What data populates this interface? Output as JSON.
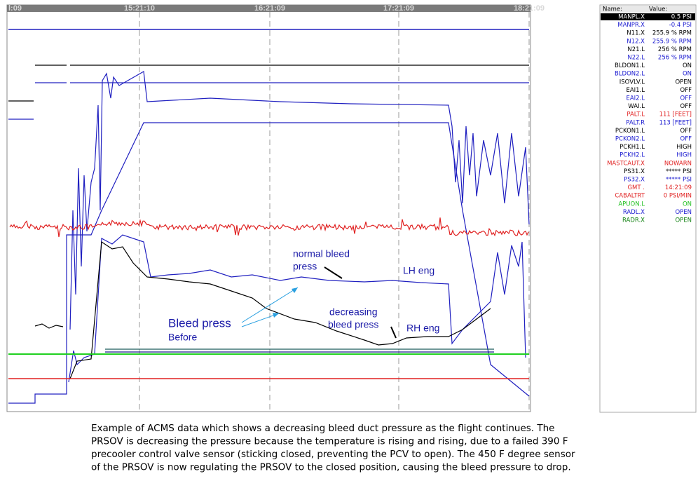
{
  "plot": {
    "time_labels": [
      "l:09",
      "15:21:10",
      "16:21:09",
      "17:21:09",
      "18:21:09"
    ],
    "annotations": {
      "normal": [
        "normal bleed",
        "press"
      ],
      "lh": "LH eng",
      "decreasing": [
        "decreasing",
        "bleed press"
      ],
      "rh": "RH eng",
      "before": [
        "Bleed press",
        "Before"
      ]
    }
  },
  "table": {
    "header": [
      "Name:",
      "Value:"
    ],
    "rows": [
      {
        "name": "MANPL.X",
        "value": "0.5 PSI",
        "color": "#ffffff"
      },
      {
        "name": "MANPR.X",
        "value": "-0.4 PSI",
        "color": "#1a1ad0"
      },
      {
        "name": "N11.X",
        "value": "255.9 % RPM",
        "color": "#000000"
      },
      {
        "name": "N12.X",
        "value": "255.9 % RPM",
        "color": "#1a1ad0"
      },
      {
        "name": "N21.L",
        "value": "256 % RPM",
        "color": "#000000"
      },
      {
        "name": "N22.L",
        "value": "256 % RPM",
        "color": "#1a1ad0"
      },
      {
        "name": "BLDON1.L",
        "value": "ON",
        "color": "#000000"
      },
      {
        "name": "BLDON2.L",
        "value": "ON",
        "color": "#1a1ad0"
      },
      {
        "name": "ISOVLV.L",
        "value": "OPEN",
        "color": "#000000"
      },
      {
        "name": "EAI1.L",
        "value": "OFF",
        "color": "#000000"
      },
      {
        "name": "EAI2.L",
        "value": "OFF",
        "color": "#1a1ad0"
      },
      {
        "name": "WAI.L",
        "value": "OFF",
        "color": "#000000"
      },
      {
        "name": "PALT.L",
        "value": "111 [FEET]",
        "color": "#e02020"
      },
      {
        "name": "PALT.R",
        "value": "113 [FEET]",
        "color": "#1a1ad0"
      },
      {
        "name": "PCKON1.L",
        "value": "OFF",
        "color": "#000000"
      },
      {
        "name": "PCKON2.L",
        "value": "OFF",
        "color": "#1a1ad0"
      },
      {
        "name": "PCKH1.L",
        "value": "HIGH",
        "color": "#000000"
      },
      {
        "name": "PCKH2.L",
        "value": "HIGH",
        "color": "#1a1ad0"
      },
      {
        "name": "MASTCAUT.X",
        "value": "NOWARN",
        "color": "#e02020"
      },
      {
        "name": "PS31.X",
        "value": "***** PSI",
        "color": "#000000"
      },
      {
        "name": "PS32.X",
        "value": "***** PSI",
        "color": "#1a1ad0"
      },
      {
        "name": "GMT .",
        "value": "14:21:09",
        "color": "#e02020"
      },
      {
        "name": "CABALTRT",
        "value": "0 PSI/MIN",
        "color": "#e02020"
      },
      {
        "name": "APUON.L",
        "value": "ON",
        "color": "#20c020"
      },
      {
        "name": "RADL.X",
        "value": "OPEN",
        "color": "#1a1ad0"
      },
      {
        "name": "RADR.X",
        "value": "OPEN",
        "color": "#108010"
      }
    ]
  },
  "caption": [
    "Example of ACMS data which shows a decreasing bleed duct pressure as the flight continues. The",
    "PRSOV is decreasing the pressure because the temperature is rising and rising, due to a failed 390 F",
    "precooler control valve sensor (sticking closed, preventing the PCV to open). The 450 F degree sensor",
    "of the PRSOV is now regulating the PRSOV to the closed position, causing the bleed pressure to drop."
  ]
}
